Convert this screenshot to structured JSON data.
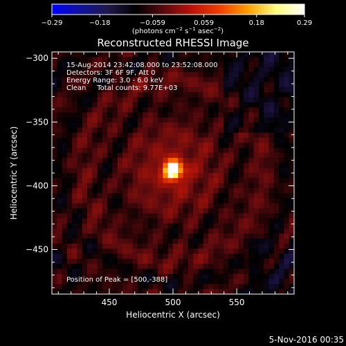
{
  "chart_data": {
    "type": "heatmap",
    "title": "Reconstructed RHESSI Image",
    "xlabel": "Heliocentric X (arcsec)",
    "ylabel": "Heliocentric Y (arcsec)",
    "xlim": [
      405,
      595
    ],
    "ylim": [
      -485,
      -295
    ],
    "x_ticks": [
      450,
      500,
      550
    ],
    "y_ticks": [
      -300,
      -350,
      -400,
      -450
    ],
    "colorbar": {
      "ticks": [
        -0.29,
        -0.18,
        -0.059,
        0.059,
        0.18,
        0.29
      ],
      "label_unit": "(photons cm",
      "exp1": "−2",
      "mid": " s",
      "exp2": "−1",
      "mid2": " asec",
      "exp3": "−2",
      "end": ")",
      "colors": [
        "#0000ff",
        "#1010a0",
        "#20184a",
        "#000000",
        "#5a0a10",
        "#c01008",
        "#f04000",
        "#ffa000",
        "#ffff80",
        "#ffffff"
      ]
    },
    "peak": {
      "x": 500,
      "y": -388,
      "value": 0.29
    },
    "annotations": {
      "time": "15-Aug-2014 23:42:08.000 to 23:52:08.000",
      "detectors": "Detectors: 3F 6F 9F, Att 0",
      "energy": "Energy Range: 3.0 - 6.0 keV",
      "clean": "Clean     Total counts: 9.77E+03",
      "peak_text": "Position of Peak = [500,-388]"
    }
  },
  "footer": {
    "date": "5-Nov-2016 00:35"
  }
}
